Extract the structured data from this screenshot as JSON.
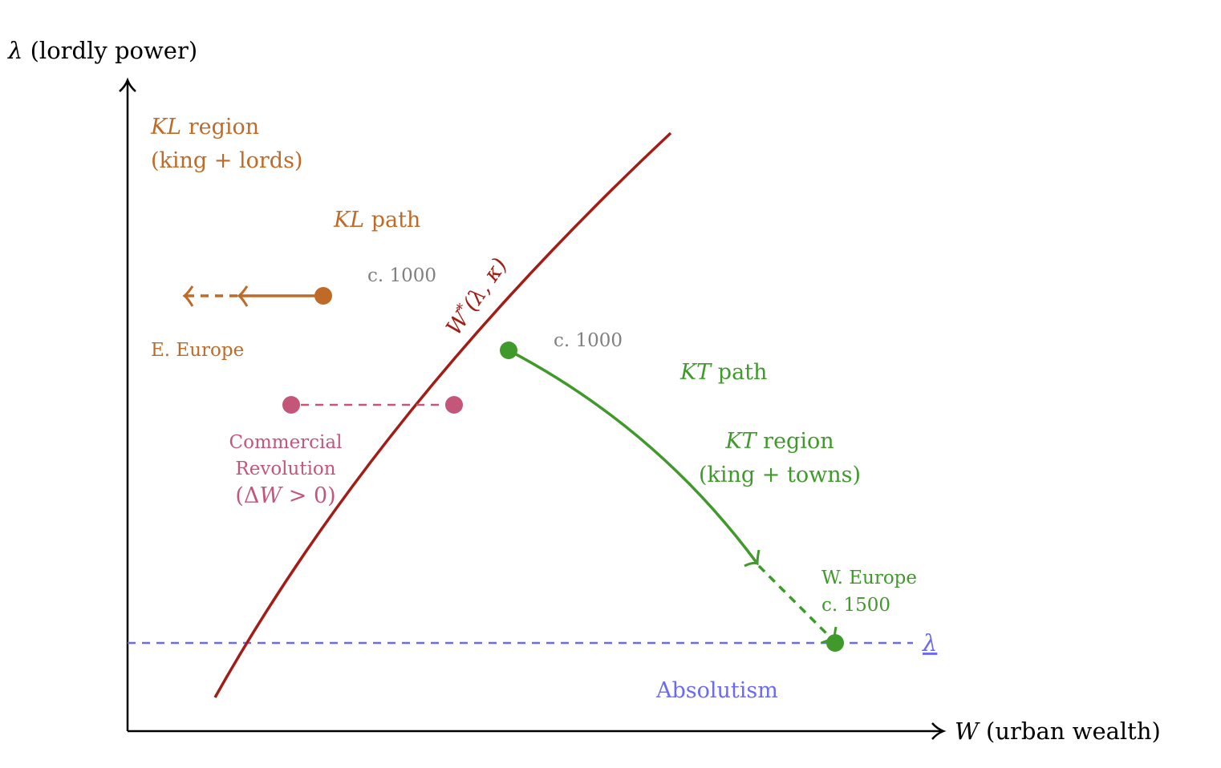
{
  "colors": {
    "axis": "#000000",
    "kl": "#c06a28",
    "kt": "#3f9a2b",
    "commercial": "#c4567a",
    "threshold_curve": "#a31d17",
    "absolutism": "#6a6af5",
    "date": "#808080"
  },
  "axes": {
    "y_symbol": "λ",
    "y_label": "(lordly power)",
    "x_symbol": "W",
    "x_label": "(urban wealth)"
  },
  "curve": {
    "symbol": "W",
    "sup": "*",
    "args": "(λ, κ)"
  },
  "kl_region": {
    "symbol": "KL",
    "label": "region",
    "sub": "(king + lords)"
  },
  "kl_path": {
    "symbol": "KL",
    "label": "path",
    "date": "c. 1000",
    "endpoint": "E. Europe"
  },
  "kt_region": {
    "symbol": "KT",
    "label": "region",
    "sub": "(king + towns)"
  },
  "kt_path": {
    "symbol": "KT",
    "label": "path",
    "date": "c. 1000",
    "endpoint": "W. Europe",
    "end_date": "c. 1500"
  },
  "commercial": {
    "line1": "Commercial",
    "line2": "Revolution",
    "open": "(Δ",
    "var": "W",
    "rest": " > 0)"
  },
  "threshold": {
    "symbol": "λ",
    "label": "Absolutism"
  }
}
